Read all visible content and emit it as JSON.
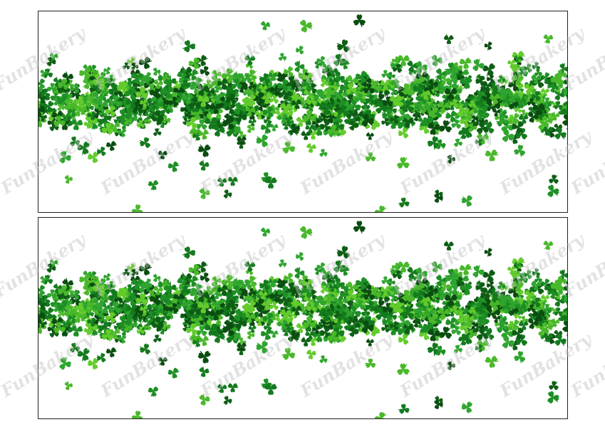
{
  "watermark": "FunBakery"
}
